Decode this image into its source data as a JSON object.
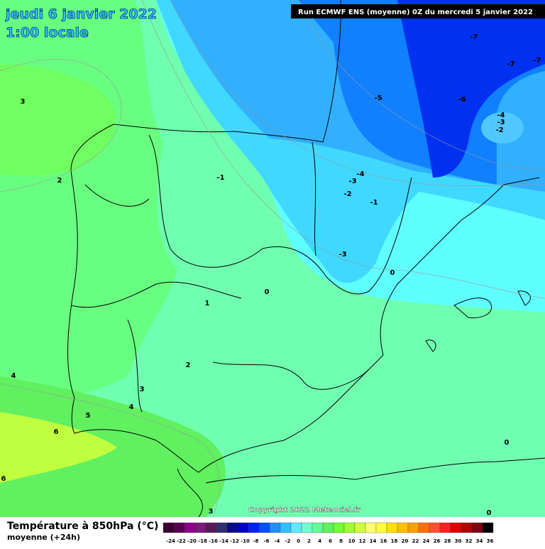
{
  "header": {
    "title": "jeudi 6 janvier 2022",
    "subtitle": "1:00 locale",
    "run": "Run ECMWF ENS (moyenne) 0Z du mercredi 5 janvier 2022"
  },
  "map": {
    "contour_labels": [
      3,
      2,
      -1,
      -5,
      -6,
      -7,
      -7,
      -7,
      -4,
      -3,
      -2,
      -4,
      -3,
      -2,
      -1,
      -3,
      0,
      0,
      1,
      2,
      3,
      4,
      4,
      5,
      6,
      6,
      0,
      0,
      3
    ],
    "copyright": "Copyright 2022 Meteociel.fr"
  },
  "footer": {
    "title": "Température à 850hPa (°C)",
    "subtitle": "moyenne  (+24h)",
    "scale": [
      {
        "label": -24,
        "color": "#3a0030"
      },
      {
        "label": -22,
        "color": "#5a0050"
      },
      {
        "label": -20,
        "color": "#8a008a"
      },
      {
        "label": -18,
        "color": "#7a1a7a"
      },
      {
        "label": -16,
        "color": "#5a1a5a"
      },
      {
        "label": -14,
        "color": "#303070"
      },
      {
        "label": -12,
        "color": "#0a0a8a"
      },
      {
        "label": -10,
        "color": "#0000c8"
      },
      {
        "label": -8,
        "color": "#0020ff"
      },
      {
        "label": -6,
        "color": "#0050ff"
      },
      {
        "label": -4,
        "color": "#2090ff"
      },
      {
        "label": -2,
        "color": "#30c0ff"
      },
      {
        "label": 0,
        "color": "#60e8ff"
      },
      {
        "label": 2,
        "color": "#70ffd0"
      },
      {
        "label": 4,
        "color": "#60ff90"
      },
      {
        "label": 6,
        "color": "#60f060"
      },
      {
        "label": 8,
        "color": "#70ff30"
      },
      {
        "label": 10,
        "color": "#a0ff30"
      },
      {
        "label": 12,
        "color": "#d0ff40"
      },
      {
        "label": 14,
        "color": "#ffff70"
      },
      {
        "label": 16,
        "color": "#ffff40"
      },
      {
        "label": 18,
        "color": "#ffe000"
      },
      {
        "label": 20,
        "color": "#ffc000"
      },
      {
        "label": 22,
        "color": "#ffa000"
      },
      {
        "label": 24,
        "color": "#ff7000"
      },
      {
        "label": 26,
        "color": "#ff5030"
      },
      {
        "label": 28,
        "color": "#ff2020"
      },
      {
        "label": 30,
        "color": "#e00000"
      },
      {
        "label": 32,
        "color": "#b00000"
      },
      {
        "label": 34,
        "color": "#800010"
      },
      {
        "label": 36,
        "color": "#000000"
      }
    ]
  }
}
